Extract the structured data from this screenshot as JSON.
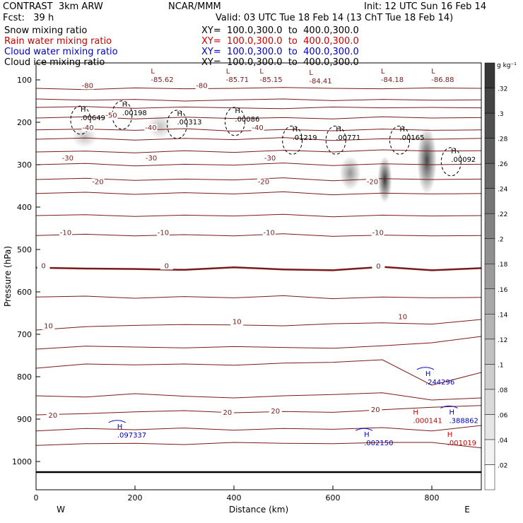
{
  "header": {
    "model": "CONTRAST  3km ARW",
    "org": "NCAR/MMM",
    "init": "Init: 12 UTC Sun 16 Feb 14",
    "fcst": "Fcst:   39 h",
    "valid": "Valid: 03 UTC Tue 18 Feb 14 (13 ChT Tue 18 Feb 14)",
    "fields": [
      {
        "label": "Snow mixing ratio",
        "xy": "XY=  100.0,300.0  to  400.0,300.0",
        "color": "#000000"
      },
      {
        "label": "Rain water mixing ratio",
        "xy": "XY=  100.0,300.0  to  400.0,300.0",
        "color": "#cc0000"
      },
      {
        "label": "Cloud water mixing ratio",
        "xy": "XY=  100.0,300.0  to  400.0,300.0",
        "color": "#0000cc"
      },
      {
        "label": "Cloud ice mixing ratio",
        "xy": "XY=  100.0,300.0  to  400.0,300.0",
        "color": "#000000"
      }
    ]
  },
  "chart_data": {
    "type": "cross-section",
    "xlabel": "Distance (km)",
    "ylabel": "Pressure (hPa)",
    "xlim": [
      0,
      900
    ],
    "ylim": [
      1040,
      60
    ],
    "x_ticks": [
      0,
      200,
      400,
      600,
      800
    ],
    "y_ticks": [
      100,
      200,
      300,
      400,
      500,
      600,
      700,
      800,
      900,
      1000
    ],
    "x_end_labels": {
      "left": "W",
      "right": "E"
    },
    "colorbar": {
      "unit": "g kg⁻¹",
      "levels": [
        0.02,
        0.04,
        0.06,
        0.08,
        0.1,
        0.12,
        0.14,
        0.16,
        0.18,
        0.2,
        0.22,
        0.24,
        0.26,
        0.28,
        0.3,
        0.32
      ],
      "tick_labels": [
        ".02",
        ".04",
        ".06",
        ".08",
        ".1",
        ".12",
        ".14",
        ".16",
        ".18",
        ".2",
        ".22",
        ".24",
        ".26",
        ".28",
        ".3",
        ".32"
      ]
    },
    "temperature_contours": [
      {
        "label": "-80",
        "p": [
          120,
          123,
          119,
          121,
          120,
          118,
          120,
          121,
          119,
          120
        ]
      },
      {
        "label": "",
        "p": [
          145,
          148,
          146,
          150,
          147,
          145,
          149,
          146,
          148,
          147
        ]
      },
      {
        "label": "",
        "p": [
          165,
          163,
          167,
          164,
          166,
          168,
          164,
          166,
          165,
          166
        ]
      },
      {
        "label": "-50",
        "p": [
          190,
          187,
          192,
          188,
          191,
          189,
          192,
          187,
          190,
          189
        ]
      },
      {
        "label": "-40",
        "p": [
          218,
          216,
          219,
          215,
          221,
          217,
          220,
          216,
          219,
          218
        ]
      },
      {
        "label": "-40",
        "p": [
          240,
          237,
          242,
          238,
          241,
          236,
          243,
          239,
          240,
          238
        ]
      },
      {
        "label": "-30",
        "p": [
          270,
          268,
          272,
          267,
          271,
          266,
          270,
          265,
          268,
          267
        ]
      },
      {
        "label": "-30",
        "p": [
          300,
          297,
          303,
          299,
          301,
          296,
          302,
          298,
          300,
          299
        ]
      },
      {
        "label": "-20",
        "p": [
          335,
          332,
          337,
          334,
          336,
          331,
          338,
          333,
          335,
          334
        ]
      },
      {
        "label": "-20",
        "p": [
          368,
          365,
          370,
          366,
          369,
          364,
          371,
          367,
          369,
          368
        ]
      },
      {
        "label": "-10",
        "p": [
          420,
          418,
          422,
          419,
          421,
          417,
          423,
          419,
          421,
          420
        ]
      },
      {
        "label": "-10",
        "p": [
          467,
          464,
          468,
          465,
          468,
          463,
          469,
          466,
          468,
          467
        ]
      },
      {
        "label": "0",
        "p": [
          543,
          545,
          546,
          548,
          542,
          547,
          549,
          541,
          549,
          544
        ]
      },
      {
        "label": "",
        "p": [
          612,
          610,
          615,
          611,
          614,
          609,
          616,
          612,
          614,
          613
        ]
      },
      {
        "label": "10",
        "p": [
          690,
          682,
          679,
          677,
          678,
          680,
          675,
          673,
          676,
          665
        ]
      },
      {
        "label": "10",
        "p": [
          735,
          728,
          730,
          732,
          729,
          731,
          733,
          727,
          720,
          705
        ]
      },
      {
        "label": "",
        "p": [
          780,
          770,
          772,
          770,
          773,
          768,
          766,
          760,
          820,
          790
        ]
      },
      {
        "label": "",
        "p": [
          845,
          848,
          840,
          846,
          850,
          845,
          842,
          838,
          855,
          850
        ]
      },
      {
        "label": "20",
        "p": [
          890,
          887,
          883,
          880,
          885,
          882,
          884,
          878,
          872,
          868
        ]
      },
      {
        "label": "",
        "p": [
          928,
          922,
          925,
          921,
          926,
          922,
          924,
          920,
          928,
          915
        ]
      },
      {
        "label": "",
        "p": [
          962,
          958,
          957,
          960,
          955,
          957,
          958,
          955,
          955,
          968
        ]
      }
    ],
    "temperature_labels": [
      {
        "text": "-80",
        "x": 104,
        "p": 119
      },
      {
        "text": "-80",
        "x": 335,
        "p": 119
      },
      {
        "text": "-50",
        "x": 152,
        "p": 189
      },
      {
        "text": "-40",
        "x": 105,
        "p": 218
      },
      {
        "text": "-40",
        "x": 232,
        "p": 218
      },
      {
        "text": "-40",
        "x": 448,
        "p": 218
      },
      {
        "text": "-30",
        "x": 64,
        "p": 290
      },
      {
        "text": "-30",
        "x": 233,
        "p": 290
      },
      {
        "text": "-30",
        "x": 473,
        "p": 290
      },
      {
        "text": "-20",
        "x": 125,
        "p": 346
      },
      {
        "text": "-20",
        "x": 460,
        "p": 346
      },
      {
        "text": "-20",
        "x": 680,
        "p": 346
      },
      {
        "text": "-10",
        "x": 60,
        "p": 466
      },
      {
        "text": "-10",
        "x": 257,
        "p": 466
      },
      {
        "text": "-10",
        "x": 471,
        "p": 466
      },
      {
        "text": "-10",
        "x": 691,
        "p": 466
      },
      {
        "text": "0",
        "x": 15,
        "p": 544
      },
      {
        "text": "0",
        "x": 264,
        "p": 544
      },
      {
        "text": "0",
        "x": 692,
        "p": 545
      },
      {
        "text": "10",
        "x": 25,
        "p": 686
      },
      {
        "text": "10",
        "x": 406,
        "p": 676
      },
      {
        "text": "10",
        "x": 741,
        "p": 664
      },
      {
        "text": "20",
        "x": 34,
        "p": 897
      },
      {
        "text": "20",
        "x": 387,
        "p": 890
      },
      {
        "text": "20",
        "x": 484,
        "p": 887
      },
      {
        "text": "20",
        "x": 686,
        "p": 883
      }
    ],
    "low_centers": [
      {
        "x": 232,
        "p": 95,
        "value": "-85.62"
      },
      {
        "x": 384,
        "p": 95,
        "value": "-85.71"
      },
      {
        "x": 452,
        "p": 95,
        "value": "-85.15"
      },
      {
        "x": 552,
        "p": 98,
        "value": "-84.41"
      },
      {
        "x": 697,
        "p": 95,
        "value": "-84.18"
      },
      {
        "x": 799,
        "p": 95,
        "value": "-86.88"
      }
    ],
    "cloud_ice_maxima": [
      {
        "x": 90,
        "p": 185,
        "value": ".00649"
      },
      {
        "x": 174,
        "p": 173,
        "value": ".00198"
      },
      {
        "x": 285,
        "p": 195,
        "value": ".00313"
      },
      {
        "x": 402,
        "p": 188,
        "value": ".00086"
      },
      {
        "x": 518,
        "p": 232,
        "value": ".01219"
      },
      {
        "x": 606,
        "p": 232,
        "value": ".00771"
      },
      {
        "x": 735,
        "p": 232,
        "value": ".00165"
      },
      {
        "x": 839,
        "p": 283,
        "value": ".00092"
      }
    ],
    "cloud_water_maxima": [
      {
        "x": 164,
        "p": 933,
        "value": ".097337"
      },
      {
        "x": 663,
        "p": 952,
        "value": ".002150"
      },
      {
        "x": 787,
        "p": 808,
        "value": ".244296"
      },
      {
        "x": 835,
        "p": 899,
        "value": ".388862"
      }
    ],
    "rain_maxima": [
      {
        "x": 762,
        "p": 899,
        "value": ".000141"
      },
      {
        "x": 831,
        "p": 952,
        "value": ".001019"
      }
    ],
    "snow_blobs": [
      {
        "x": 98,
        "p": 235,
        "rx": 18,
        "rp": 25,
        "value": 0.08
      },
      {
        "x": 250,
        "p": 210,
        "rx": 18,
        "rp": 30,
        "value": 0.08
      },
      {
        "x": 635,
        "p": 320,
        "rx": 15,
        "rp": 40,
        "value": 0.14
      },
      {
        "x": 705,
        "p": 335,
        "rx": 10,
        "rp": 55,
        "value": 0.26
      },
      {
        "x": 790,
        "p": 290,
        "rx": 14,
        "rp": 80,
        "value": 0.24
      }
    ]
  }
}
